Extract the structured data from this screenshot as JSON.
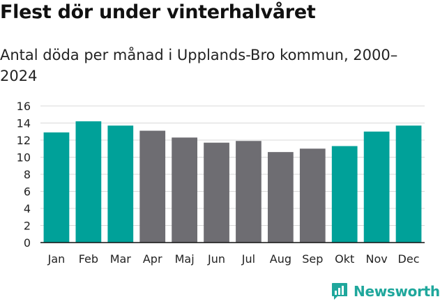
{
  "header": {
    "title": "Flest dör under vinterhalvåret",
    "subtitle": "Antal döda per månad i Upplands-Bro kommun, 2000–2024"
  },
  "branding": {
    "logo_text": "Newsworthy"
  },
  "colors": {
    "winter": "#00a199",
    "summer": "#6e6d72",
    "grid": "#d8d8d8",
    "axis": "#111111",
    "brand": "#1fa79c"
  },
  "chart_data": {
    "type": "bar",
    "title": "Flest dör under vinterhalvåret",
    "subtitle": "Antal döda per månad i Upplands-Bro kommun, 2000–2024",
    "xlabel": "",
    "ylabel": "",
    "categories": [
      "Jan",
      "Feb",
      "Mar",
      "Apr",
      "Maj",
      "Jun",
      "Jul",
      "Aug",
      "Sep",
      "Okt",
      "Nov",
      "Dec"
    ],
    "values": [
      12.9,
      14.2,
      13.7,
      13.1,
      12.3,
      11.7,
      11.9,
      10.6,
      11.0,
      11.3,
      13.0,
      13.7
    ],
    "highlight": [
      true,
      true,
      true,
      false,
      false,
      false,
      false,
      false,
      false,
      true,
      true,
      true
    ],
    "ylim": [
      0,
      16
    ],
    "yticks": [
      0,
      2,
      4,
      6,
      8,
      10,
      12,
      14,
      16
    ],
    "grid": true,
    "legend": "none"
  }
}
